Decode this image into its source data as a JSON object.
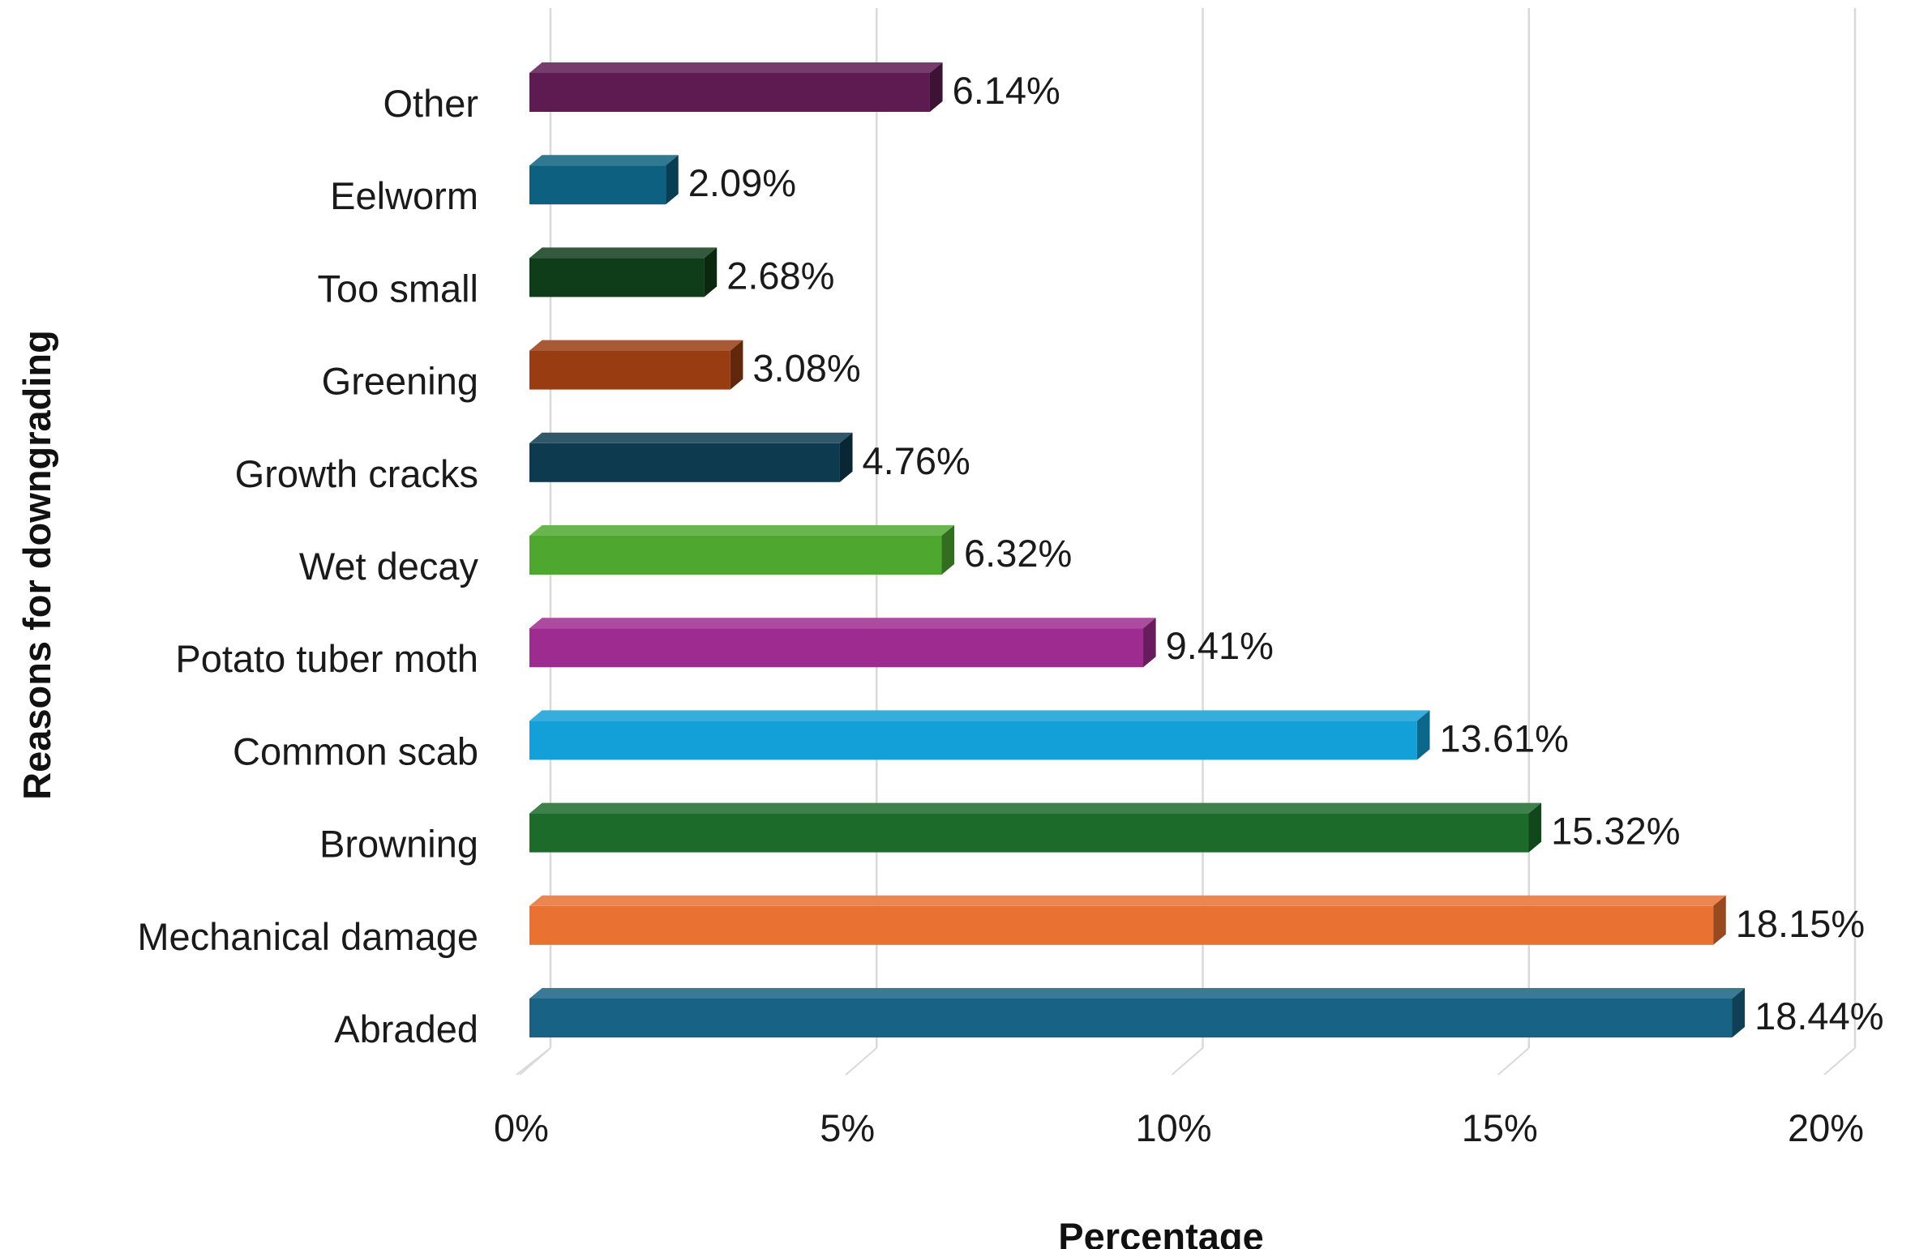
{
  "chart_data": {
    "type": "bar",
    "orientation": "horizontal",
    "style": "3d",
    "title": "",
    "xlabel": "Percentage",
    "ylabel": "Reasons for downgrading",
    "xlim": [
      0,
      20
    ],
    "x_ticks": [
      0,
      5,
      10,
      15,
      20
    ],
    "x_tick_labels": [
      "0%",
      "5%",
      "10%",
      "15%",
      "20%"
    ],
    "grid": "vertical",
    "legend": "none",
    "categories": [
      "Other",
      "Eelworm",
      "Too small",
      "Greening",
      "Growth cracks",
      "Wet decay",
      "Potato tuber moth",
      "Common scab",
      "Browning",
      "Mechanical damage",
      "Abraded"
    ],
    "values": [
      6.14,
      2.09,
      2.68,
      3.08,
      4.76,
      6.32,
      9.41,
      13.61,
      15.32,
      18.15,
      18.44
    ],
    "value_labels": [
      "6.14%",
      "2.09%",
      "2.68%",
      "3.08%",
      "4.76%",
      "6.32%",
      "9.41%",
      "13.61%",
      "15.32%",
      "18.15%",
      "18.44%"
    ],
    "colors": [
      "#5e1b52",
      "#0d6080",
      "#0f3d19",
      "#993c11",
      "#0d3a4f",
      "#4ea830",
      "#9e2b90",
      "#139fd7",
      "#1c6b2a",
      "#e97131",
      "#176285"
    ]
  }
}
